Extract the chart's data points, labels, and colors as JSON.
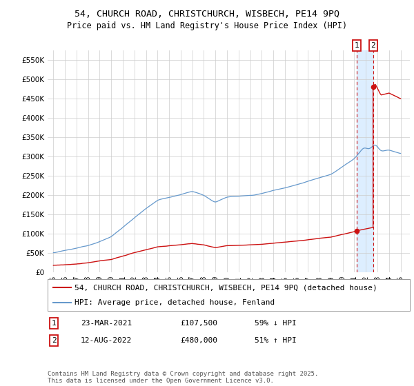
{
  "title": "54, CHURCH ROAD, CHRISTCHURCH, WISBECH, PE14 9PQ",
  "subtitle": "Price paid vs. HM Land Registry's House Price Index (HPI)",
  "ylim": [
    0,
    575000
  ],
  "yticks": [
    0,
    50000,
    100000,
    150000,
    200000,
    250000,
    300000,
    350000,
    400000,
    450000,
    500000,
    550000
  ],
  "ytick_labels": [
    "£0",
    "£50K",
    "£100K",
    "£150K",
    "£200K",
    "£250K",
    "£300K",
    "£350K",
    "£400K",
    "£450K",
    "£500K",
    "£550K"
  ],
  "background_color": "#ffffff",
  "plot_bg_color": "#ffffff",
  "grid_color": "#cccccc",
  "hpi_color": "#6699cc",
  "price_color": "#cc1111",
  "shade_color": "#ddeeff",
  "t_trans1": 2021.22,
  "t_trans2": 2022.62,
  "price1": 107500,
  "price2": 480000,
  "legend_label_red": "54, CHURCH ROAD, CHRISTCHURCH, WISBECH, PE14 9PQ (detached house)",
  "legend_label_blue": "HPI: Average price, detached house, Fenland",
  "footer": "Contains HM Land Registry data © Crown copyright and database right 2025.\nThis data is licensed under the Open Government Licence v3.0.",
  "title_fontsize": 9.5,
  "subtitle_fontsize": 8.5,
  "tick_fontsize": 7.5,
  "legend_fontsize": 8,
  "footer_fontsize": 6.5,
  "xmin": 1995,
  "xmax": 2025
}
